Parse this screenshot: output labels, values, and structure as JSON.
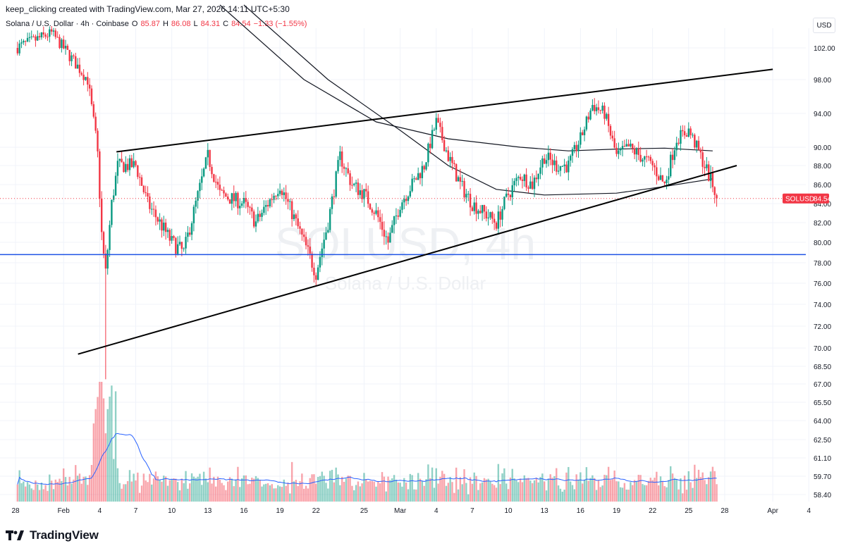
{
  "header": {
    "attribution": "keep_clicking created with TradingView.com, Mar 27, 2026 14:11 UTC+5:30"
  },
  "legend": {
    "symbol": "Solana / U.S. Dollar · 4h · Coinbase",
    "open_label": "O",
    "open": "85.87",
    "high_label": "H",
    "high": "86.08",
    "low_label": "L",
    "low": "84.31",
    "close_label": "C",
    "close": "84.54",
    "change": "−1.33 (−1.55%)"
  },
  "currency": "USD",
  "price_tag": {
    "symbol": "SOLUSD",
    "value": "84.54"
  },
  "watermark": {
    "main": "SOLUSD, 4h",
    "sub": "Solana / U.S. Dollar"
  },
  "brand": "TradingView",
  "colors": {
    "up": "#089981",
    "down": "#f23645",
    "horizontal_line": "#2962ff",
    "volume_ma": "#2962ff",
    "trendline": "#000000",
    "ma": "#131722"
  },
  "chart_data": {
    "type": "candlestick",
    "symbol": "SOLUSD",
    "timeframe": "4h",
    "y_ticks": [
      "102.00",
      "98.00",
      "94.00",
      "90.00",
      "88.00",
      "86.00",
      "84.00",
      "82.00",
      "80.00",
      "78.00",
      "76.00",
      "74.00",
      "72.00",
      "70.00",
      "68.50",
      "67.00",
      "65.50",
      "64.00",
      "62.50",
      "61.10",
      "59.70",
      "58.40"
    ],
    "x_ticks": [
      "28",
      "Feb",
      "4",
      "7",
      "10",
      "13",
      "16",
      "19",
      "22",
      "25",
      "Mar",
      "4",
      "7",
      "10",
      "13",
      "16",
      "19",
      "22",
      "25",
      "28",
      "Apr",
      "4"
    ],
    "last_price": 84.54,
    "horizontal_level": 78.8,
    "anchors": [
      {
        "day": 0,
        "price": 102
      },
      {
        "day": 3,
        "price": 104
      },
      {
        "day": 4,
        "price": 102
      },
      {
        "day": 6,
        "price": 98
      },
      {
        "day": 6.8,
        "price": 90
      },
      {
        "day": 7.2,
        "price": 80
      },
      {
        "day": 7.5,
        "price": 77
      },
      {
        "day": 8,
        "price": 84
      },
      {
        "day": 8.5,
        "price": 88
      },
      {
        "day": 10,
        "price": 88
      },
      {
        "day": 11,
        "price": 84
      },
      {
        "day": 13,
        "price": 80
      },
      {
        "day": 14,
        "price": 79
      },
      {
        "day": 15,
        "price": 84
      },
      {
        "day": 16,
        "price": 89
      },
      {
        "day": 17,
        "price": 85
      },
      {
        "day": 19,
        "price": 84
      },
      {
        "day": 20,
        "price": 82
      },
      {
        "day": 21,
        "price": 84
      },
      {
        "day": 22,
        "price": 86
      },
      {
        "day": 23,
        "price": 83
      },
      {
        "day": 24,
        "price": 80
      },
      {
        "day": 25,
        "price": 77
      },
      {
        "day": 26,
        "price": 82
      },
      {
        "day": 27,
        "price": 89
      },
      {
        "day": 28,
        "price": 86
      },
      {
        "day": 29,
        "price": 85
      },
      {
        "day": 30,
        "price": 83
      },
      {
        "day": 31,
        "price": 80
      },
      {
        "day": 32,
        "price": 84
      },
      {
        "day": 33,
        "price": 86
      },
      {
        "day": 34,
        "price": 88
      },
      {
        "day": 35,
        "price": 93
      },
      {
        "day": 36,
        "price": 89
      },
      {
        "day": 37,
        "price": 86
      },
      {
        "day": 38,
        "price": 84
      },
      {
        "day": 39,
        "price": 83
      },
      {
        "day": 40,
        "price": 82
      },
      {
        "day": 41,
        "price": 85
      },
      {
        "day": 42,
        "price": 87
      },
      {
        "day": 43,
        "price": 86
      },
      {
        "day": 44,
        "price": 89
      },
      {
        "day": 45,
        "price": 88
      },
      {
        "day": 46,
        "price": 88
      },
      {
        "day": 47,
        "price": 91
      },
      {
        "day": 48,
        "price": 95
      },
      {
        "day": 49,
        "price": 94
      },
      {
        "day": 50,
        "price": 89
      },
      {
        "day": 51,
        "price": 90
      },
      {
        "day": 52,
        "price": 89
      },
      {
        "day": 53,
        "price": 88
      },
      {
        "day": 54,
        "price": 86
      },
      {
        "day": 55,
        "price": 91
      },
      {
        "day": 56,
        "price": 92
      },
      {
        "day": 57,
        "price": 89
      },
      {
        "day": 58,
        "price": 86
      },
      {
        "day": 58.4,
        "price": 84.5
      }
    ],
    "trendlines": [
      {
        "name": "upper",
        "from": {
          "day": 8.4,
          "price": 89.5
        },
        "to": {
          "day": 63,
          "price": 99.3
        }
      },
      {
        "name": "lower",
        "from": {
          "day": 5.2,
          "price": 69.5
        },
        "to": {
          "day": 60,
          "price": 88
        }
      }
    ],
    "moving_averages": [
      {
        "points": [
          {
            "day": 19,
            "price": 108
          },
          {
            "day": 26,
            "price": 98
          },
          {
            "day": 32,
            "price": 92
          },
          {
            "day": 36,
            "price": 88
          },
          {
            "day": 40,
            "price": 85.5
          },
          {
            "day": 44,
            "price": 84.9
          },
          {
            "day": 50,
            "price": 85.1
          },
          {
            "day": 54,
            "price": 85.8
          },
          {
            "day": 58,
            "price": 86.6
          }
        ]
      },
      {
        "points": [
          {
            "day": 17,
            "price": 108
          },
          {
            "day": 24,
            "price": 98
          },
          {
            "day": 30,
            "price": 93
          },
          {
            "day": 36,
            "price": 91
          },
          {
            "day": 42,
            "price": 90
          },
          {
            "day": 46,
            "price": 89.6
          },
          {
            "day": 50,
            "price": 89.8
          },
          {
            "day": 54,
            "price": 89.9
          },
          {
            "day": 58,
            "price": 89.6
          }
        ]
      }
    ]
  }
}
